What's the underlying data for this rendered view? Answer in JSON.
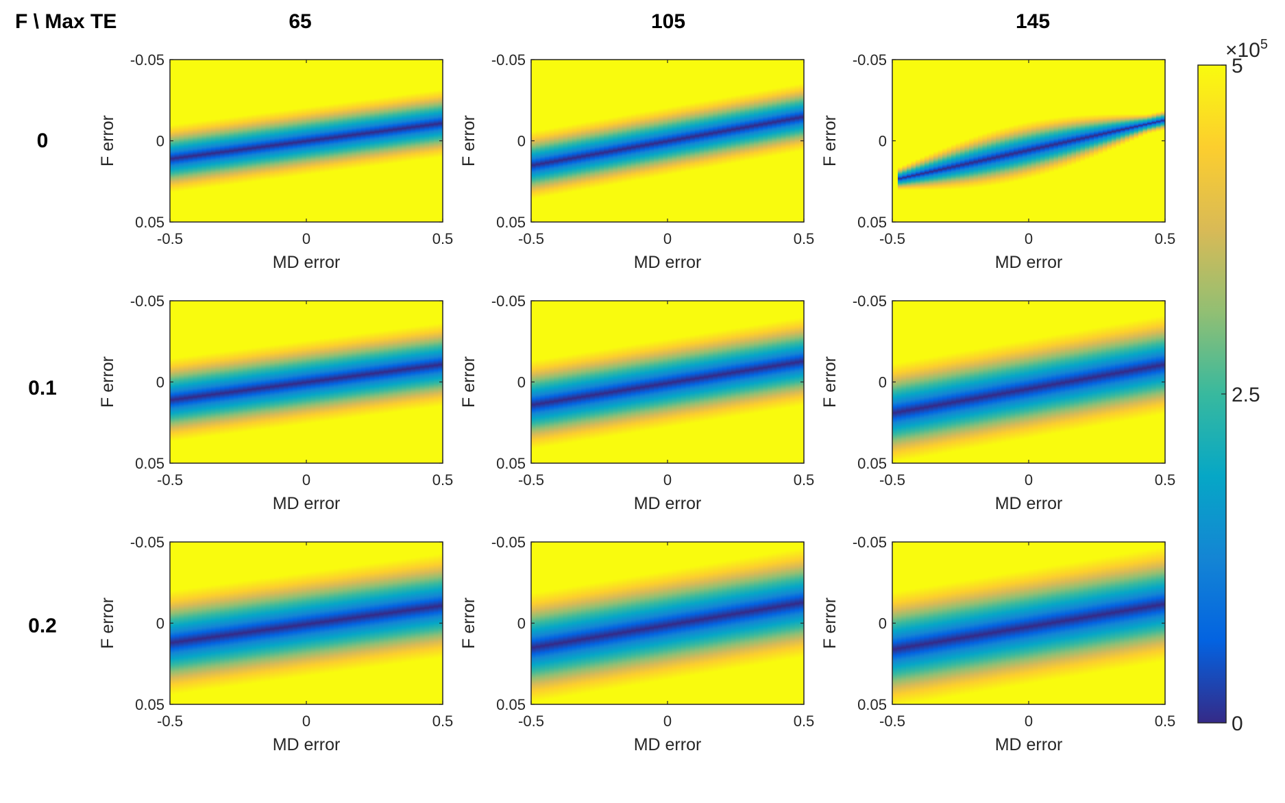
{
  "corner_label": "F \\ Max TE",
  "columns": [
    "65",
    "105",
    "145"
  ],
  "rows": [
    "0",
    "0.1",
    "0.2"
  ],
  "chart_data": {
    "type": "heatmap",
    "layout": "3x3 grid of subplots",
    "xlabel": "MD error",
    "ylabel": "F error",
    "xlim": [
      -0.5,
      0.5
    ],
    "ylim": [
      -0.05,
      0.05
    ],
    "y_direction": "reversed",
    "x_ticks": [
      -0.5,
      0,
      0.5
    ],
    "x_tick_labels": [
      "-0.5",
      "0",
      "0.5"
    ],
    "y_ticks": [
      -0.05,
      0,
      0.05
    ],
    "y_tick_labels": [
      "-0.05",
      "0",
      "0.05"
    ],
    "colormap": "parula",
    "colorbar": {
      "min": 0,
      "max": 500000,
      "ticks": [
        0,
        2.5,
        5
      ],
      "tick_labels": [
        "0",
        "2.5",
        "5"
      ],
      "multiplier_base": "×10",
      "multiplier_exp": "5",
      "colors": [
        "#352a87",
        "#0363e1",
        "#1485d4",
        "#06a7c6",
        "#38b99e",
        "#92bf73",
        "#d9ba56",
        "#fcce2e",
        "#f9fb0e"
      ]
    },
    "panels": [
      {
        "row": "0",
        "column": "65",
        "center_f_at_md_min": 0.011,
        "center_f_at_md_max": -0.011,
        "valley_halfwidth": 0.013,
        "valley_ends": [
          -0.5,
          0.5
        ]
      },
      {
        "row": "0",
        "column": "105",
        "center_f_at_md_min": 0.015,
        "center_f_at_md_max": -0.015,
        "valley_halfwidth": 0.013,
        "valley_ends": [
          -0.5,
          0.5
        ]
      },
      {
        "row": "0",
        "column": "145",
        "center_f_at_md_min": 0.024,
        "center_f_at_md_max": -0.013,
        "valley_halfwidth": 0.011,
        "valley_ends": [
          -0.48,
          0.5
        ]
      },
      {
        "row": "0.1",
        "column": "65",
        "center_f_at_md_min": 0.011,
        "center_f_at_md_max": -0.011,
        "valley_halfwidth": 0.016,
        "valley_ends": [
          -0.5,
          0.5
        ]
      },
      {
        "row": "0.1",
        "column": "105",
        "center_f_at_md_min": 0.014,
        "center_f_at_md_max": -0.013,
        "valley_halfwidth": 0.017,
        "valley_ends": [
          -0.5,
          0.5
        ]
      },
      {
        "row": "0.1",
        "column": "145",
        "center_f_at_md_min": 0.019,
        "center_f_at_md_max": -0.011,
        "valley_halfwidth": 0.019,
        "valley_ends": [
          -0.5,
          0.5
        ]
      },
      {
        "row": "0.2",
        "column": "65",
        "center_f_at_md_min": 0.012,
        "center_f_at_md_max": -0.011,
        "valley_halfwidth": 0.02,
        "valley_ends": [
          -0.5,
          0.5
        ]
      },
      {
        "row": "0.2",
        "column": "105",
        "center_f_at_md_min": 0.015,
        "center_f_at_md_max": -0.013,
        "valley_halfwidth": 0.021,
        "valley_ends": [
          -0.5,
          0.5
        ]
      },
      {
        "row": "0.2",
        "column": "145",
        "center_f_at_md_min": 0.016,
        "center_f_at_md_max": -0.012,
        "valley_halfwidth": 0.022,
        "valley_ends": [
          -0.5,
          0.5
        ]
      }
    ]
  }
}
